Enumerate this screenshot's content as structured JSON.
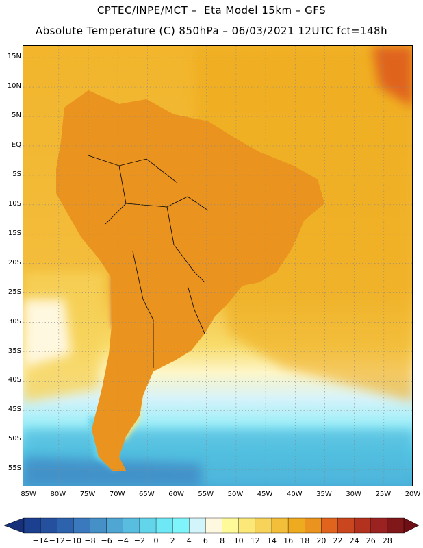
{
  "header": {
    "line1": "CPTEC/INPE/MCT –  Eta Model 15km – GFS",
    "line2": "Absolute Temperature (C) 850hPa – 06/03/2021 12UTC fct=148h"
  },
  "map": {
    "region": "South America",
    "lat_range": [
      -58,
      17
    ],
    "lon_range": [
      -86,
      -20
    ],
    "lat_labels": [
      {
        "text": "15N",
        "lat": 15
      },
      {
        "text": "10N",
        "lat": 10
      },
      {
        "text": "5N",
        "lat": 5
      },
      {
        "text": "EQ",
        "lat": 0
      },
      {
        "text": "5S",
        "lat": -5
      },
      {
        "text": "10S",
        "lat": -10
      },
      {
        "text": "15S",
        "lat": -15
      },
      {
        "text": "20S",
        "lat": -20
      },
      {
        "text": "25S",
        "lat": -25
      },
      {
        "text": "30S",
        "lat": -30
      },
      {
        "text": "35S",
        "lat": -35
      },
      {
        "text": "40S",
        "lat": -40
      },
      {
        "text": "45S",
        "lat": -45
      },
      {
        "text": "50S",
        "lat": -50
      },
      {
        "text": "55S",
        "lat": -55
      }
    ],
    "lon_labels": [
      {
        "text": "85W",
        "lon": -85
      },
      {
        "text": "80W",
        "lon": -80
      },
      {
        "text": "75W",
        "lon": -75
      },
      {
        "text": "70W",
        "lon": -70
      },
      {
        "text": "65W",
        "lon": -65
      },
      {
        "text": "60W",
        "lon": -60
      },
      {
        "text": "55W",
        "lon": -55
      },
      {
        "text": "50W",
        "lon": -50
      },
      {
        "text": "45W",
        "lon": -45
      },
      {
        "text": "40W",
        "lon": -40
      },
      {
        "text": "35W",
        "lon": -35
      },
      {
        "text": "30W",
        "lon": -30
      },
      {
        "text": "25W",
        "lon": -25
      },
      {
        "text": "20W",
        "lon": -20
      }
    ]
  },
  "colorbar": {
    "labels": [
      "-14",
      "-12",
      "-10",
      "-8",
      "-6",
      "-4",
      "-2",
      "0",
      "2",
      "4",
      "6",
      "8",
      "10",
      "12",
      "14",
      "16",
      "18",
      "20",
      "22",
      "24",
      "26",
      "28"
    ],
    "colors": [
      "#1d3f8f",
      "#25509e",
      "#2d62ad",
      "#3a79bd",
      "#4690c8",
      "#50a6d2",
      "#59bde0",
      "#63d5eb",
      "#6ee8f5",
      "#7df5fb",
      "#d2f4fb",
      "#fff8e0",
      "#fffa99",
      "#fbe879",
      "#f7d35a",
      "#f3bf3a",
      "#efab1f",
      "#ea931e",
      "#e0641d",
      "#c9461e",
      "#b3321f",
      "#9a2220",
      "#801719"
    ],
    "low_end_color": "#17307a",
    "high_end_color": "#6e0f16"
  }
}
